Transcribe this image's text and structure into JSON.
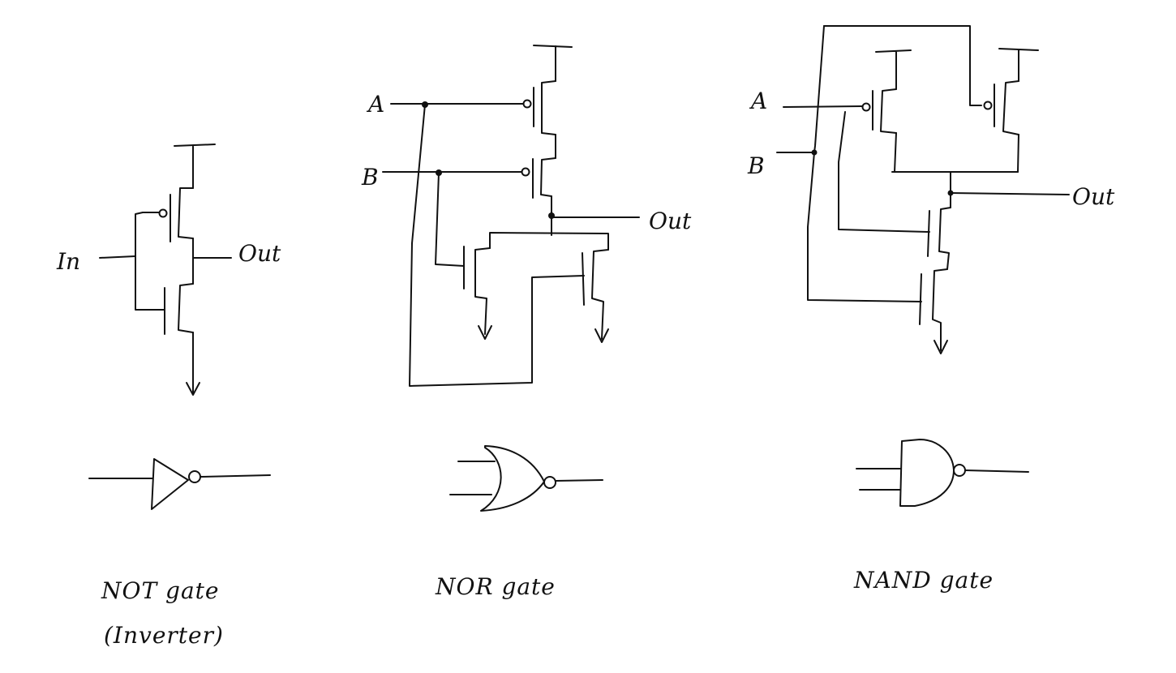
{
  "not_gate": {
    "input_label": "In",
    "output_label": "Out",
    "caption": "NOT gate",
    "subcaption": "(Inverter)"
  },
  "nor_gate": {
    "input_a_label": "A",
    "input_b_label": "B",
    "output_label": "Out",
    "caption": "NOR gate"
  },
  "nand_gate": {
    "input_a_label": "A",
    "input_b_label": "B",
    "output_label": "Out",
    "caption": "NAND gate"
  },
  "colors": {
    "ink": "#111111",
    "background": "#ffffff"
  }
}
